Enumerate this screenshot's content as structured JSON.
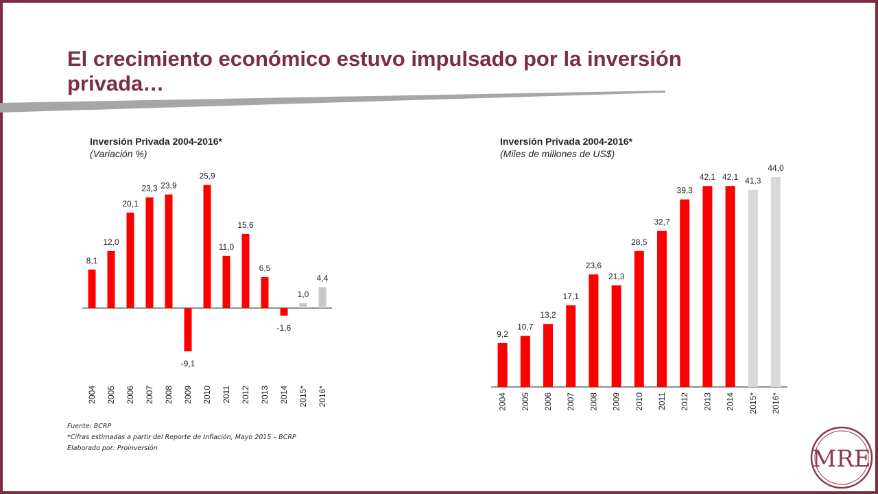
{
  "slide": {
    "title": "El crecimiento económico estuvo impulsado por la inversión privada…"
  },
  "chart_data": [
    {
      "type": "bar",
      "title": "Inversión Privada 2004-2016*",
      "subtitle": "(Variación %)",
      "categories": [
        "2004",
        "2005",
        "2006",
        "2007",
        "2008",
        "2009",
        "2010",
        "2011",
        "2012",
        "2013",
        "2014",
        "2015*",
        "2016*"
      ],
      "values": [
        8.1,
        12.0,
        20.1,
        23.3,
        23.9,
        -9.1,
        25.9,
        11.0,
        15.6,
        6.5,
        -1.6,
        1.0,
        4.4
      ],
      "value_labels": [
        "8,1",
        "12,0",
        "20,1",
        "23,3",
        "23,9",
        "-9,1",
        "25,9",
        "11,0",
        "15,6",
        "6,5",
        "-1,6",
        "1,0",
        "4,4"
      ],
      "estimated": [
        false,
        false,
        false,
        false,
        false,
        false,
        false,
        false,
        false,
        false,
        false,
        true,
        true
      ],
      "colors": {
        "actual": "#ff0000",
        "estimated": "#c8c8c8"
      },
      "ylim": [
        -10,
        27
      ]
    },
    {
      "type": "bar",
      "title": "Inversión Privada 2004-2016*",
      "subtitle": "(Miles de millones de US$)",
      "categories": [
        "2004",
        "2005",
        "2006",
        "2007",
        "2008",
        "2009",
        "2010",
        "2011",
        "2012",
        "2013",
        "2014",
        "2015*",
        "2016*"
      ],
      "values": [
        9.2,
        10.7,
        13.2,
        17.1,
        23.6,
        21.3,
        28.5,
        32.7,
        39.3,
        42.1,
        42.1,
        41.3,
        44.0
      ],
      "value_labels": [
        "9,2",
        "10,7",
        "13,2",
        "17,1",
        "23,6",
        "21,3",
        "28,5",
        "32,7",
        "39,3",
        "42,1",
        "42,1",
        "41,3",
        "44,0"
      ],
      "estimated": [
        false,
        false,
        false,
        false,
        false,
        false,
        false,
        false,
        false,
        false,
        false,
        true,
        true
      ],
      "colors": {
        "actual": "#ff0000",
        "estimated": "#d9d9d9"
      },
      "ylim": [
        0,
        45
      ]
    }
  ],
  "footnote": {
    "lines": [
      "Fuente: BCRP",
      "*Cifras estimadas a partir del Reporte de Inflación, Mayo 2015 – BCRP",
      "Elaborado por: Proinversión"
    ]
  },
  "logo": {
    "text": "MRE"
  }
}
